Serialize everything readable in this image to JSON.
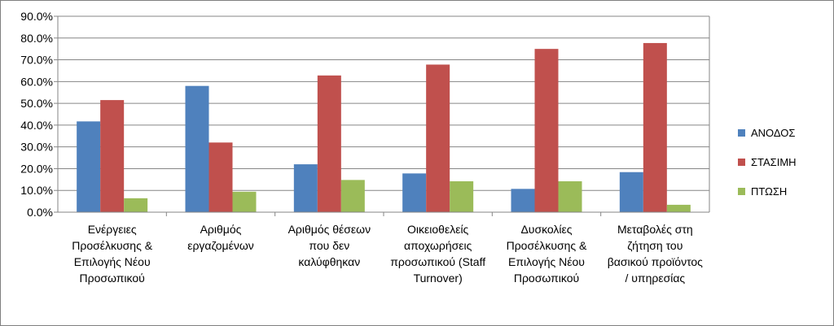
{
  "chart_data": {
    "type": "bar",
    "title": "",
    "xlabel": "",
    "ylabel": "",
    "ylim": [
      0,
      90
    ],
    "y_tick_labels": [
      "0.0%",
      "10.0%",
      "20.0%",
      "30.0%",
      "40.0%",
      "50.0%",
      "60.0%",
      "70.0%",
      "80.0%",
      "90.0%"
    ],
    "grid": true,
    "legend": "right",
    "categories": [
      [
        "Ενέργειες",
        "Προσέλκυσης &",
        "Επιλογής Νέου",
        "Προσωπικού"
      ],
      [
        "Αριθμός",
        "εργαζομένων"
      ],
      [
        "Αριθμός θέσεων",
        "που δεν",
        "καλύφθηκαν"
      ],
      [
        "Οικειοθελείς",
        "αποχωρήσεις",
        "προσωπικού (Staff",
        "Turnover)"
      ],
      [
        "Δυσκολίες",
        "Προσέλκυσης &",
        "Επιλογής Νέου",
        "Προσωπικού"
      ],
      [
        "Μεταβολές στη",
        "ζήτηση του",
        "βασικού προϊόντος",
        "/ υπηρεσίας"
      ]
    ],
    "series": [
      {
        "name": "ΑΝΟΔΟΣ",
        "color": "#4f81bd",
        "values": [
          41.7,
          58.0,
          22.0,
          17.8,
          10.7,
          18.4
        ]
      },
      {
        "name": "ΣΤΑΣΙΜΗ",
        "color": "#c0504d",
        "values": [
          51.5,
          32.0,
          62.8,
          67.8,
          75.0,
          77.7
        ]
      },
      {
        "name": "ΠΤΩΣΗ",
        "color": "#9bbb59",
        "values": [
          6.4,
          9.4,
          14.8,
          14.2,
          14.2,
          3.4
        ]
      }
    ]
  }
}
